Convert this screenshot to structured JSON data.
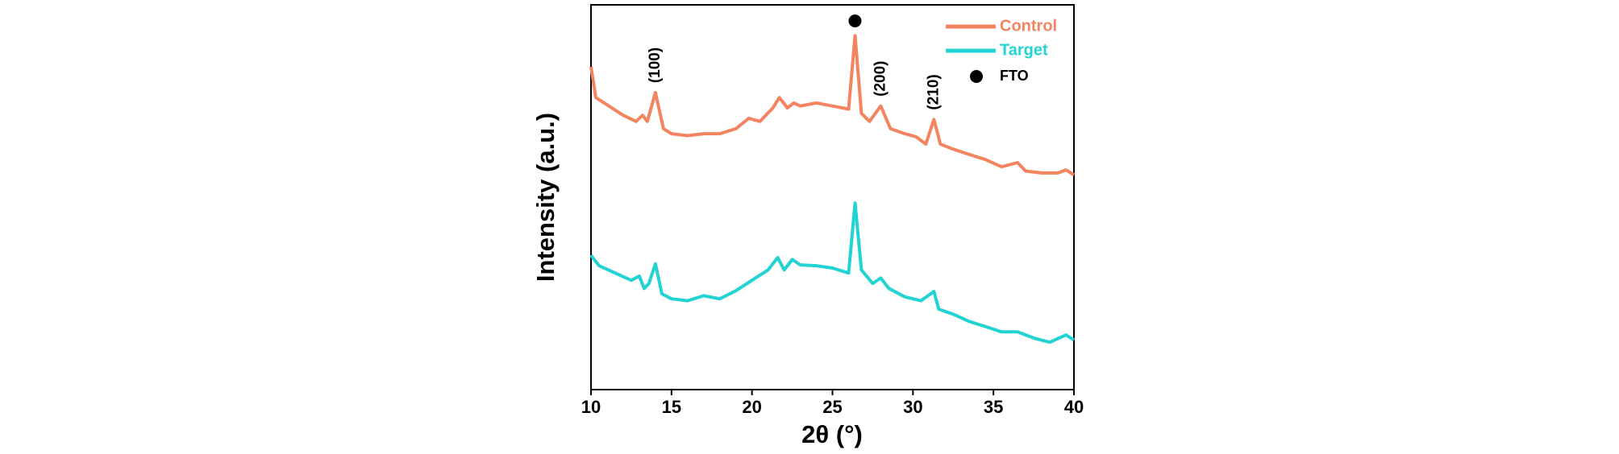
{
  "chart_data": {
    "type": "line",
    "xlabel": "2θ (°)",
    "ylabel": "Intensity (a.u.)",
    "xlim": [
      10,
      40
    ],
    "xticks": [
      10,
      15,
      20,
      25,
      30,
      35,
      40
    ],
    "ylim": [
      0,
      100
    ],
    "series": [
      {
        "name": "Control",
        "color": "#f4845f",
        "x": [
          10,
          10.3,
          11,
          12,
          12.8,
          13.2,
          13.5,
          14,
          14.5,
          15,
          16,
          17,
          18,
          19,
          19.8,
          20.5,
          21.3,
          21.7,
          22.2,
          22.6,
          23,
          24,
          25,
          26,
          26.4,
          26.8,
          27.3,
          28,
          28.6,
          29.5,
          30.2,
          30.8,
          31.3,
          31.7,
          32.5,
          33.5,
          34.5,
          35.5,
          36.5,
          37,
          38,
          39,
          39.5,
          40
        ],
        "values": [
          83.9,
          75.9,
          74.0,
          71.3,
          69.7,
          71.3,
          69.7,
          77.2,
          67.8,
          66.5,
          66.0,
          66.5,
          66.5,
          67.8,
          70.5,
          69.7,
          73.2,
          75.9,
          73.2,
          74.5,
          73.7,
          74.5,
          73.7,
          72.9,
          92.0,
          71.8,
          69.7,
          73.7,
          67.8,
          66.5,
          65.7,
          63.8,
          70.2,
          63.8,
          62.5,
          61.1,
          59.8,
          57.9,
          59.0,
          56.8,
          56.3,
          56.3,
          57.1,
          55.8
        ]
      },
      {
        "name": "Target",
        "color": "#22d3d3",
        "x": [
          10,
          10.5,
          11.5,
          12.5,
          13,
          13.3,
          13.6,
          14,
          14.4,
          15,
          16,
          17,
          18,
          19,
          20,
          21,
          21.6,
          22,
          22.5,
          23,
          24,
          25,
          26,
          26.4,
          26.8,
          27.5,
          28,
          28.5,
          29.5,
          30.5,
          31.3,
          31.6,
          32.5,
          33.5,
          34.5,
          35.5,
          36.5,
          37.5,
          38.5,
          39.5,
          40
        ],
        "values": [
          34.9,
          32.2,
          30.3,
          28.4,
          29.5,
          26.3,
          27.6,
          32.7,
          24.9,
          23.6,
          23.1,
          24.4,
          23.6,
          25.7,
          28.4,
          31.1,
          34.3,
          31.1,
          33.8,
          32.4,
          32.2,
          31.6,
          30.3,
          48.5,
          31.1,
          27.6,
          29.0,
          26.3,
          24.1,
          23.1,
          25.5,
          20.9,
          19.6,
          17.7,
          16.4,
          15.0,
          15.0,
          13.4,
          12.3,
          14.2,
          12.9
        ]
      }
    ],
    "markers": [
      {
        "name": "FTO",
        "color": "#000000",
        "x": [
          26.4
        ]
      }
    ],
    "annotations": [
      {
        "text": "(100)",
        "x": 14
      },
      {
        "text": "(200)",
        "x": 28
      },
      {
        "text": "(210)",
        "x": 31.3
      }
    ],
    "legend": "upper right"
  }
}
